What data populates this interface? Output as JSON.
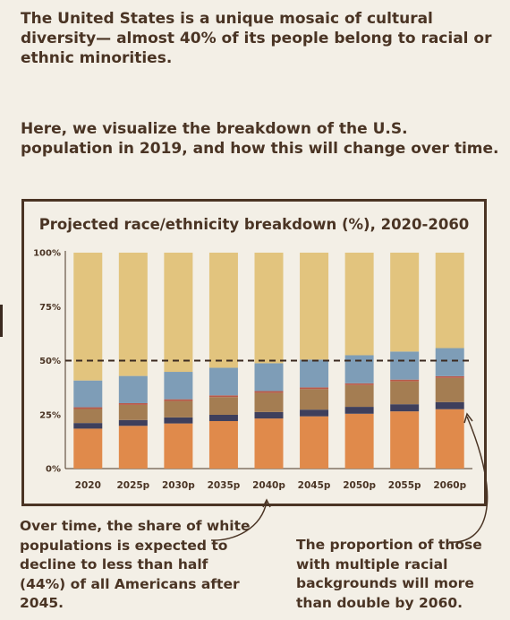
{
  "intro": "The United States is a unique mosaic of cultural diversity— almost 40% of its people belong to racial or ethnic minorities.",
  "intro2": "Here, we visualize the breakdown of the U.S. population in 2019, and how this will change over time.",
  "note_left": "Over time, the share of white populations is expected to decline to less than half (44%) of all Americans after 2045.",
  "note_right": "The proportion of those with multiple racial backgrounds will more than double by 2060.",
  "colors": {
    "hispanic": "#e08a4b",
    "black": "#3e3f5c",
    "asian": "#a47d52",
    "aian": "#b85a4a",
    "multiple": "#7e9db7",
    "white": "#e2c47e",
    "text": "#4a3424"
  },
  "chart_data": {
    "type": "bar",
    "stacked": true,
    "title": "Projected race/ethnicity breakdown (%), 2020-2060",
    "categories": [
      "2020",
      "2025p",
      "2030p",
      "2035p",
      "2040p",
      "2045p",
      "2050p",
      "2055p",
      "2060p"
    ],
    "yticks": [
      "0%",
      "25%",
      "50%",
      "75%",
      "100%"
    ],
    "ylim": [
      0,
      100
    ],
    "reference_line": 50,
    "series": [
      {
        "color": "#e08a4b",
        "values": [
          18.5,
          19.8,
          20.9,
          22,
          23.2,
          24.2,
          25.4,
          26.5,
          27.5
        ]
      },
      {
        "color": "#3e3f5c",
        "values": [
          2.6,
          2.7,
          2.8,
          2.9,
          3,
          3.1,
          3.2,
          3.3,
          3.3
        ]
      },
      {
        "color": "#a47d52",
        "values": [
          6.5,
          7,
          7.6,
          8.2,
          8.9,
          9.5,
          10.1,
          10.6,
          11.2
        ]
      },
      {
        "color": "#b85a4a",
        "values": [
          0.8,
          0.8,
          0.8,
          0.8,
          0.8,
          0.8,
          0.8,
          0.8,
          0.8
        ]
      },
      {
        "color": "#7e9db7",
        "values": [
          12.4,
          12.6,
          12.7,
          12.8,
          12.9,
          12.9,
          13.0,
          13.0,
          13.0
        ]
      },
      {
        "color": "#e2c47e",
        "values": [
          59.2,
          57.1,
          55.2,
          53.3,
          51.2,
          49.5,
          47.5,
          45.8,
          44.2
        ]
      }
    ]
  }
}
